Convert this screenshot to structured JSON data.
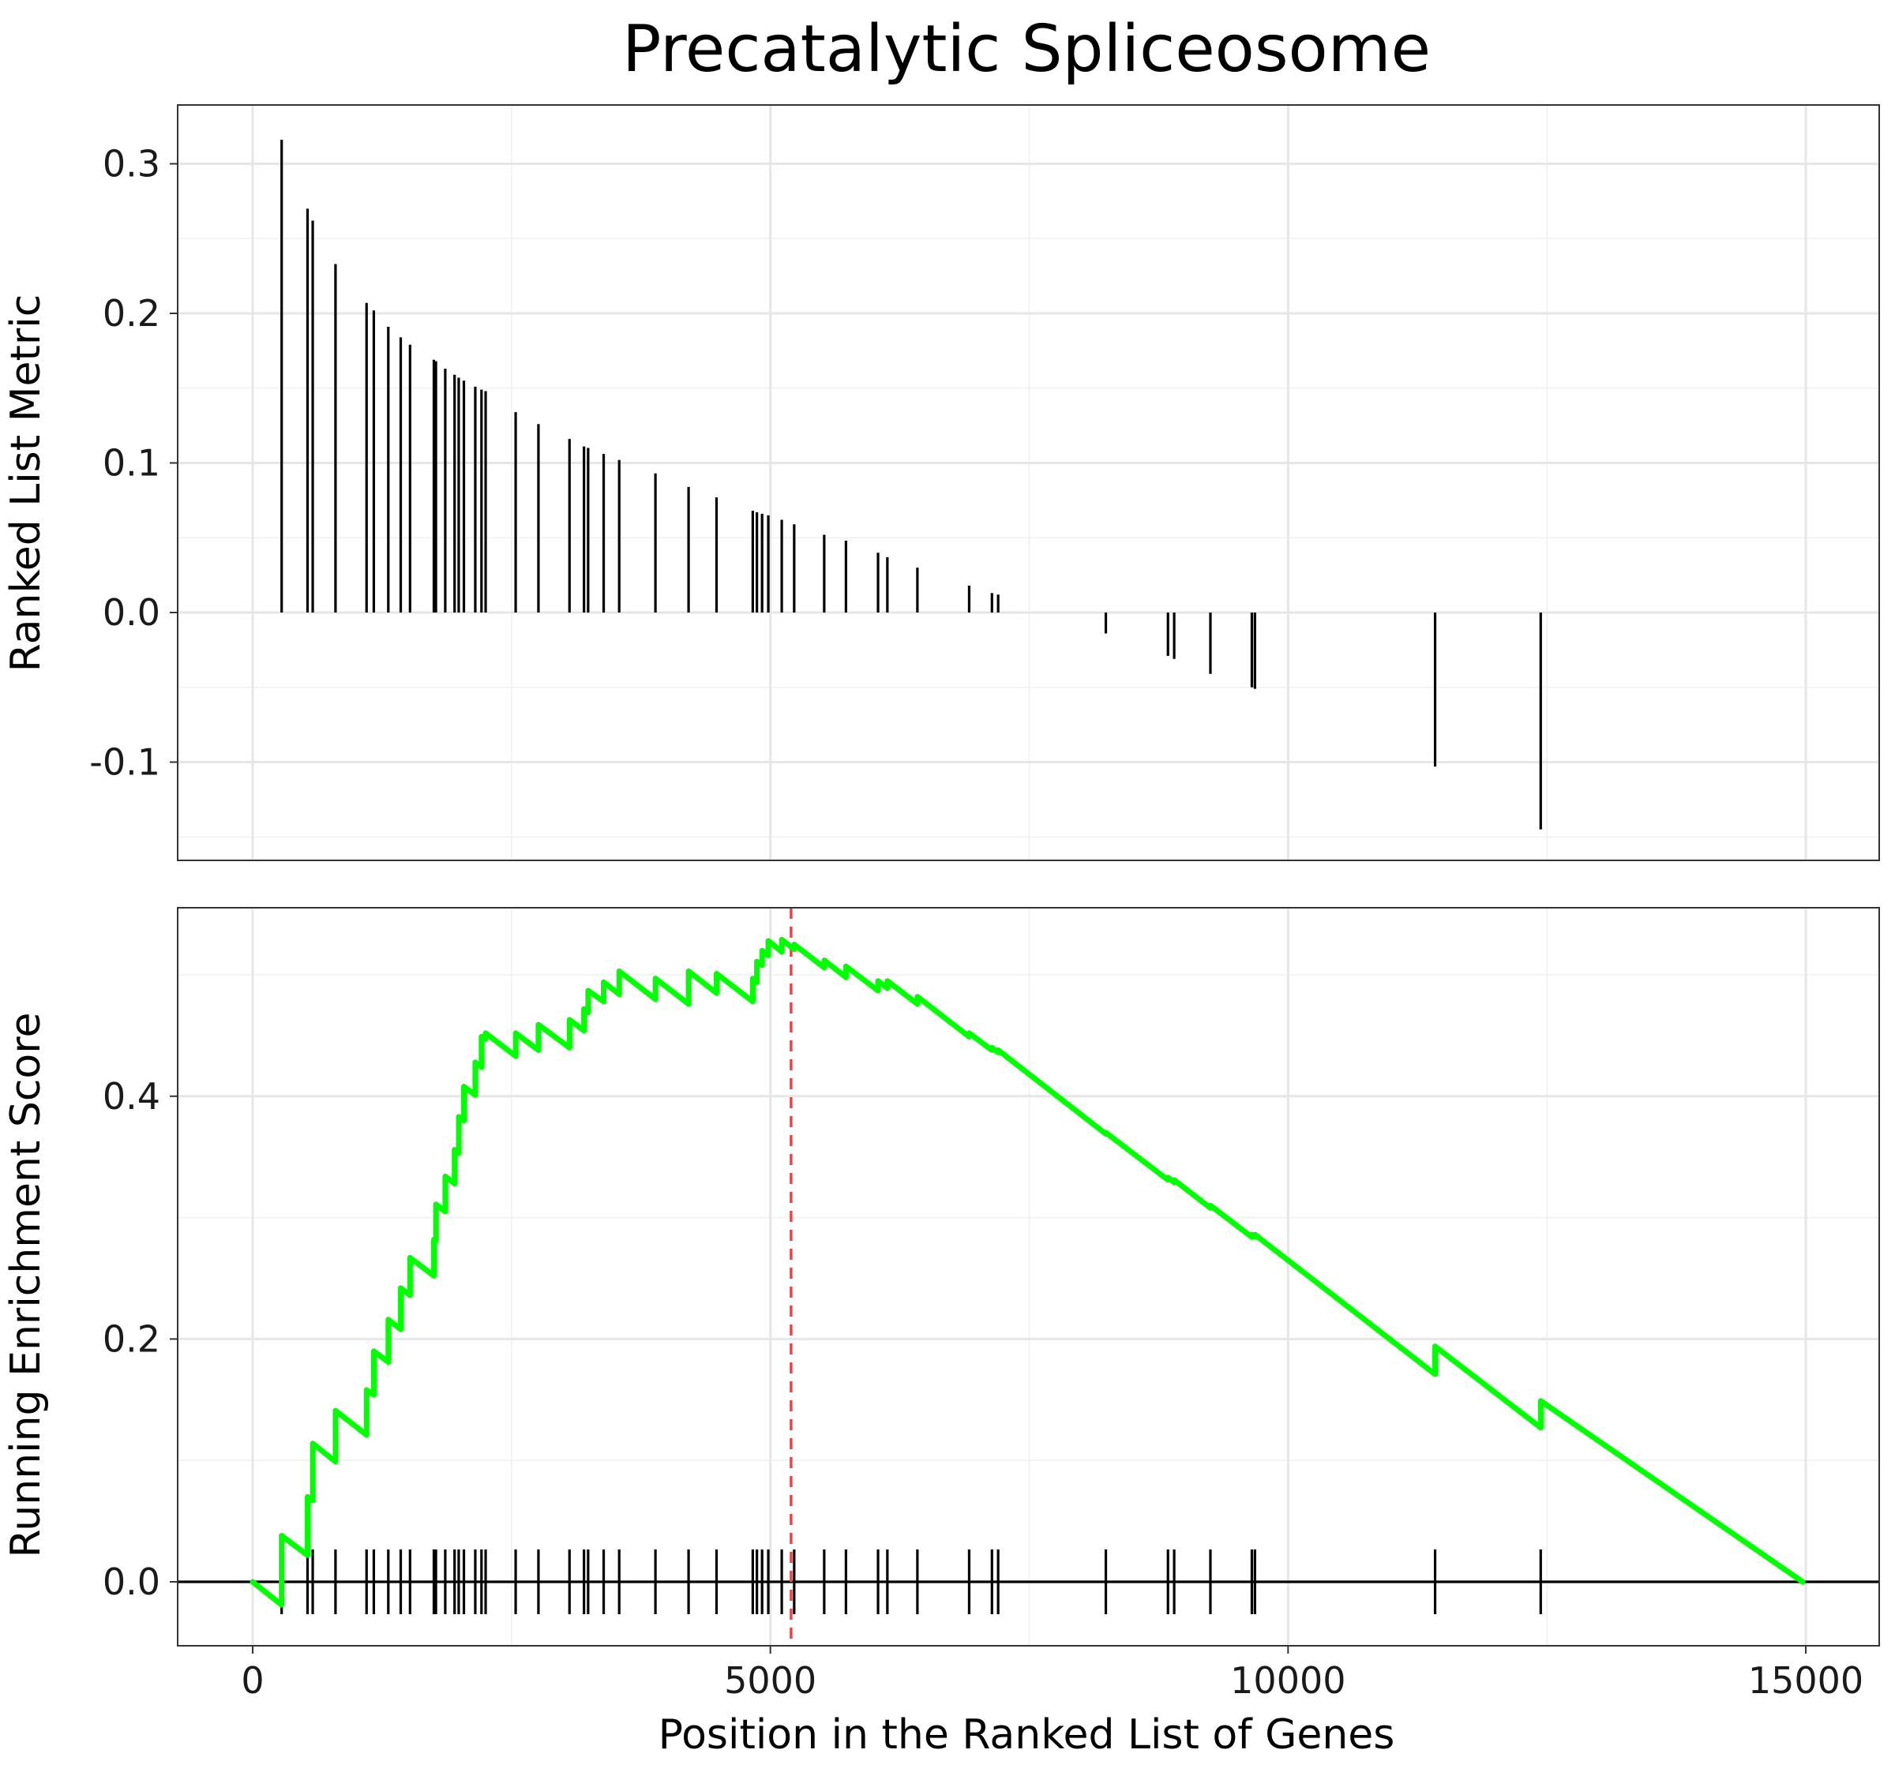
{
  "title": "Precatalytic Spliceosome",
  "chart_data": [
    {
      "type": "bar",
      "panel": "ranked-list-metric",
      "ylabel": "Ranked List Metric",
      "xlim": [
        0,
        15000
      ],
      "ylim": [
        -0.15,
        0.33
      ],
      "y_ticks": [
        -0.1,
        0.0,
        0.1,
        0.2,
        0.3
      ],
      "y_tick_labels": [
        "-0.1",
        "0.0",
        "0.1",
        "0.2",
        "0.3"
      ],
      "grid": true,
      "x": [
        280,
        530,
        580,
        800,
        1100,
        1170,
        1310,
        1430,
        1520,
        1750,
        1770,
        1860,
        1950,
        1990,
        2040,
        2150,
        2210,
        2250,
        2540,
        2760,
        3060,
        3200,
        3240,
        3390,
        3540,
        3890,
        4210,
        4480,
        4830,
        4870,
        4920,
        4980,
        5110,
        5230,
        5520,
        5730,
        6040,
        6130,
        6420,
        6920,
        7140,
        7200,
        8240,
        8840,
        8900,
        9250,
        9650,
        9680,
        11420,
        12440
      ],
      "values": [
        0.316,
        0.27,
        0.262,
        0.233,
        0.207,
        0.202,
        0.191,
        0.184,
        0.179,
        0.169,
        0.168,
        0.163,
        0.159,
        0.157,
        0.155,
        0.151,
        0.149,
        0.148,
        0.134,
        0.126,
        0.116,
        0.111,
        0.11,
        0.106,
        0.102,
        0.093,
        0.084,
        0.077,
        0.068,
        0.067,
        0.066,
        0.065,
        0.062,
        0.059,
        0.052,
        0.048,
        0.04,
        0.037,
        0.03,
        0.018,
        0.013,
        0.012,
        -0.014,
        -0.029,
        -0.031,
        -0.041,
        -0.05,
        -0.051,
        -0.103,
        -0.145
      ]
    },
    {
      "type": "line",
      "panel": "running-enrichment-score",
      "ylabel": "Running Enrichment Score",
      "xlabel": "Position in the Ranked List of Genes",
      "xlim": [
        0,
        15000
      ],
      "ylim": [
        -0.055,
        0.555
      ],
      "x_ticks": [
        0,
        5000,
        10000,
        15000
      ],
      "x_tick_labels": [
        "0",
        "5000",
        "10000",
        "15000"
      ],
      "y_ticks": [
        0.0,
        0.2,
        0.4
      ],
      "y_tick_labels": [
        "0.0",
        "0.2",
        "0.4"
      ],
      "grid": true,
      "series_color": "#00ff00",
      "peak_line": {
        "x": 5200,
        "color": "#e8464a",
        "style": "dashed"
      },
      "zero_line_color": "#000000",
      "x": [
        0,
        280,
        280,
        530,
        530,
        580,
        580,
        800,
        800,
        1100,
        1100,
        1170,
        1170,
        1310,
        1310,
        1430,
        1430,
        1520,
        1520,
        1750,
        1750,
        1770,
        1770,
        1860,
        1860,
        1950,
        1950,
        1990,
        1990,
        2040,
        2040,
        2150,
        2150,
        2210,
        2210,
        2250,
        2250,
        2540,
        2540,
        2760,
        2760,
        3060,
        3060,
        3200,
        3200,
        3240,
        3240,
        3390,
        3390,
        3540,
        3540,
        3890,
        3890,
        4210,
        4210,
        4480,
        4480,
        4830,
        4830,
        4870,
        4870,
        4920,
        4920,
        4980,
        4980,
        5110,
        5110,
        5230,
        5230,
        5520,
        5520,
        5730,
        5730,
        6040,
        6040,
        6130,
        6130,
        6420,
        6420,
        6920,
        6920,
        7140,
        7140,
        7200,
        7200,
        8240,
        8240,
        8840,
        8840,
        8900,
        8900,
        9250,
        9250,
        9650,
        9650,
        9680,
        9680,
        11420,
        11420,
        12440,
        12440,
        14970
      ],
      "values": [
        0.0,
        -0.019,
        0.038,
        0.022,
        0.07,
        0.067,
        0.114,
        0.099,
        0.141,
        0.121,
        0.158,
        0.154,
        0.19,
        0.181,
        0.216,
        0.208,
        0.242,
        0.236,
        0.267,
        0.252,
        0.282,
        0.281,
        0.311,
        0.305,
        0.334,
        0.328,
        0.356,
        0.353,
        0.383,
        0.38,
        0.408,
        0.401,
        0.428,
        0.424,
        0.449,
        0.447,
        0.452,
        0.433,
        0.452,
        0.438,
        0.459,
        0.44,
        0.463,
        0.454,
        0.472,
        0.469,
        0.487,
        0.478,
        0.494,
        0.484,
        0.503,
        0.48,
        0.497,
        0.476,
        0.503,
        0.485,
        0.501,
        0.478,
        0.497,
        0.494,
        0.511,
        0.508,
        0.52,
        0.516,
        0.528,
        0.519,
        0.529,
        0.521,
        0.525,
        0.506,
        0.512,
        0.498,
        0.507,
        0.487,
        0.495,
        0.489,
        0.495,
        0.476,
        0.482,
        0.449,
        0.452,
        0.438,
        0.44,
        0.436,
        0.438,
        0.369,
        0.37,
        0.331,
        0.333,
        0.329,
        0.331,
        0.308,
        0.31,
        0.284,
        0.286,
        0.284,
        0.286,
        0.171,
        0.194,
        0.127,
        0.149,
        0.0
      ],
      "hit_positions": [
        280,
        530,
        580,
        800,
        1100,
        1170,
        1310,
        1430,
        1520,
        1750,
        1770,
        1860,
        1950,
        1990,
        2040,
        2150,
        2210,
        2250,
        2540,
        2760,
        3060,
        3200,
        3240,
        3390,
        3540,
        3890,
        4210,
        4480,
        4830,
        4870,
        4920,
        4980,
        5110,
        5230,
        5520,
        5730,
        6040,
        6130,
        6420,
        6920,
        7140,
        7200,
        8240,
        8840,
        8900,
        9250,
        9650,
        9680,
        11420,
        12440
      ]
    }
  ]
}
